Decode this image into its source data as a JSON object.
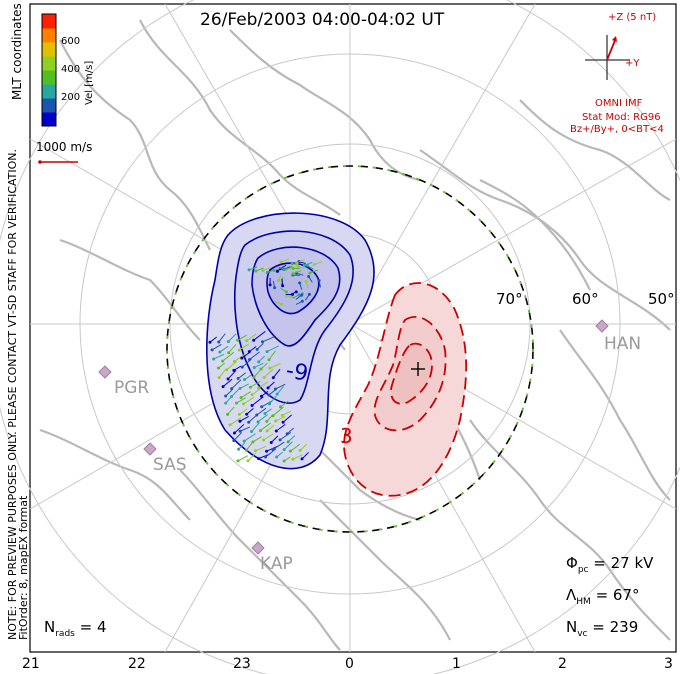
{
  "title": "26/Feb/2003 04:00-04:02 UT",
  "coordinates_label": "MLT coordinates",
  "notice_line1": "NOTE: FOR PREVIEW PURPOSES ONLY. PLEASE CONTACT VT-SD STAFF FOR VERIFICATION.",
  "notice_line2": "FitOrder: 8, mapEX format",
  "colorbar": {
    "label": "Vel [m/s]",
    "ticks": [
      "600",
      "400",
      "200"
    ],
    "colors": [
      "#0000cc",
      "#1a56b0",
      "#2aa6a0",
      "#50c020",
      "#90d020",
      "#e0c000",
      "#ff8000",
      "#ff2000"
    ]
  },
  "scale_vector": "1000 m/s",
  "imf": {
    "z_label": "+Z (5 nT)",
    "y_label": "+Y",
    "source": "OMNI IMF",
    "model": "Stat Mod: RG96",
    "condition": "Bz+/By+, 0<BT<4",
    "color": "#cc0000"
  },
  "latitude_labels": [
    "70°",
    "60°",
    "50°"
  ],
  "stations": [
    "PGR",
    "SAS",
    "KAP",
    "HAN"
  ],
  "potential_labels": {
    "min": "-9",
    "max": "3"
  },
  "stats": {
    "phi_symbol": "Φ",
    "phi_sub": "pc",
    "phi_value": "= 27 kV",
    "lambda_symbol": "Λ",
    "lambda_sub": "HM",
    "lambda_value": "= 67°",
    "nvc_symbol": "N",
    "nvc_sub": "vc",
    "nvc_value": "= 239",
    "nrads_symbol": "N",
    "nrads_sub": "rads",
    "nrads_value": "= 4"
  },
  "mlt_ticks": [
    "21",
    "22",
    "23",
    "0",
    "1",
    "2",
    "3"
  ]
}
